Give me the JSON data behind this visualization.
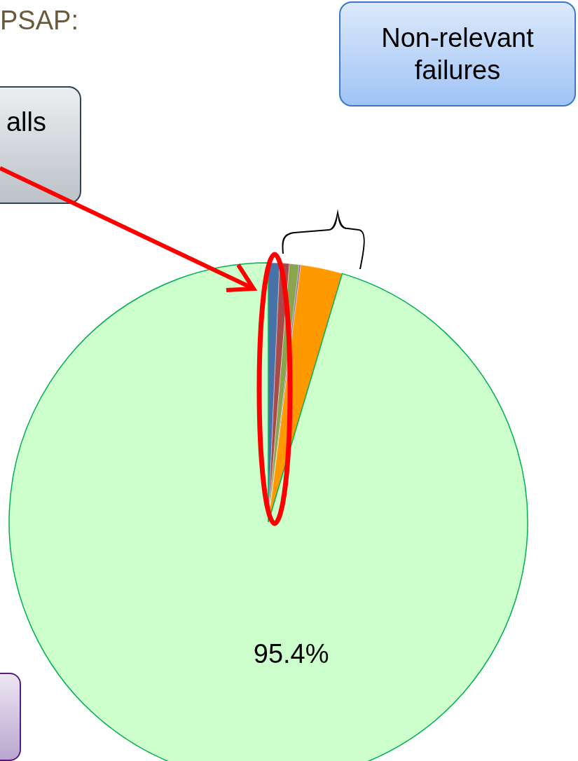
{
  "chart_data": {
    "type": "pie",
    "title": "PSAP:",
    "categories": [
      null,
      null,
      null,
      null,
      null,
      null
    ],
    "values": [
      0.7,
      0.6,
      0.6,
      0.1,
      2.6,
      95.4
    ],
    "colors": [
      "#4672a8",
      "#a84a4a",
      "#8aa54e",
      "#8064a2",
      "#ff9900",
      "#ccffcc"
    ],
    "value_labels": [
      null,
      null,
      null,
      null,
      null,
      "95.4%"
    ],
    "annotations": [
      "alls",
      "Non-relevant failures"
    ],
    "legend": false
  }
}
